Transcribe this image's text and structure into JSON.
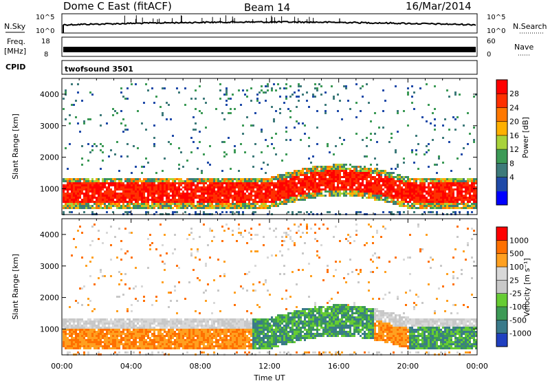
{
  "header": {
    "title": "Dome C East (fitACF)",
    "beam": "Beam 14",
    "date": "16/Mar/2014"
  },
  "meta_panels": {
    "nsky_label": "N.Sky",
    "nsky_ticks": [
      "10^5",
      "10^0"
    ],
    "nsearch_label": "N.Search",
    "nsearch_ticks": [
      "10^5",
      "10^0"
    ],
    "freq_label": "Freq.",
    "freq_unit": "[MHz]",
    "freq_ticks": [
      "18",
      "8"
    ],
    "nave_label": "Nave",
    "nave_ticks": [
      "60",
      "0"
    ],
    "cpid_label": "CPID",
    "cpid_value": "twofsound 3501"
  },
  "chart_data": [
    {
      "type": "heatmap",
      "name": "power",
      "xlabel": "",
      "ylabel": "Slant Range [km]",
      "xlim": [
        0,
        24
      ],
      "ylim": [
        180,
        4500
      ],
      "yticks": [
        1000,
        2000,
        3000,
        4000
      ],
      "colorbar": {
        "label": "Power [dB]",
        "ticks": [
          "28",
          "24",
          "20",
          "16",
          "12",
          "8",
          "4"
        ],
        "colors": [
          "#0000ff",
          "#1f4aa8",
          "#3d7a7a",
          "#3c9a56",
          "#a8d23a",
          "#ffb000",
          "#ff7800",
          "#ff3000",
          "#ff0000"
        ]
      }
    },
    {
      "type": "heatmap",
      "name": "velocity",
      "xlabel": "Time UT",
      "ylabel": "Slant Range [km]",
      "xlim": [
        0,
        24
      ],
      "ylim": [
        180,
        4500
      ],
      "yticks": [
        1000,
        2000,
        3000,
        4000
      ],
      "xticklabels": [
        "00:00",
        "04:00",
        "08:00",
        "12:00",
        "16:00",
        "20:00",
        "00:00"
      ],
      "colorbar": {
        "label": "Velocity [m s⁻¹]",
        "ticks": [
          "1000",
          "500",
          "100",
          "25",
          "-25",
          "-100",
          "-500",
          "-1000"
        ],
        "colors": [
          "#2040c0",
          "#3a7a8a",
          "#3d9a56",
          "#66cc33",
          "#c8c8c8",
          "#d8d8d8",
          "#ffa020",
          "#ff7000",
          "#ff0000"
        ]
      }
    }
  ]
}
